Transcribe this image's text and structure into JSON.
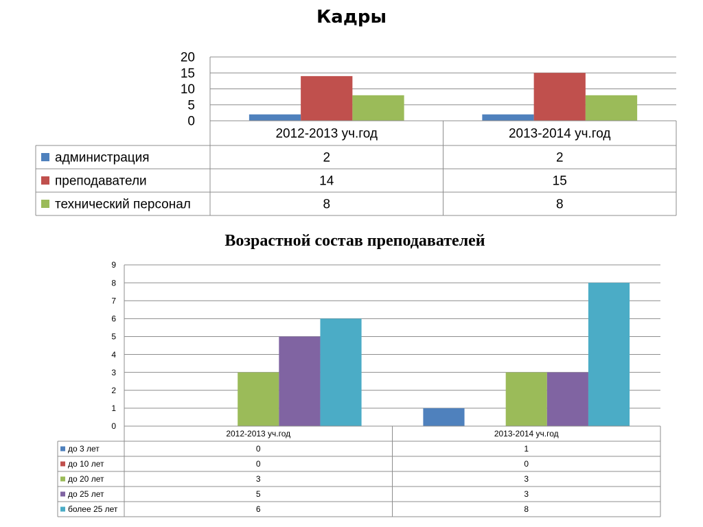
{
  "chart_data": [
    {
      "type": "bar",
      "title": "Кадры",
      "categories": [
        "2012-2013 уч.год",
        "2013-2014  уч.год"
      ],
      "series": [
        {
          "name": "администрация",
          "values": [
            2,
            2
          ],
          "color": "#4f81bd"
        },
        {
          "name": "преподаватели",
          "values": [
            14,
            15
          ],
          "color": "#c0504d"
        },
        {
          "name": "технический персонал",
          "values": [
            8,
            8
          ],
          "color": "#9bbb59"
        }
      ],
      "yticks": [
        0,
        5,
        10,
        15,
        20
      ],
      "ylim": [
        0,
        20
      ],
      "grid": true,
      "legend": "data-table"
    },
    {
      "type": "bar",
      "title": "Возрастной состав преподавателей",
      "categories": [
        "2012-2013 уч.год",
        "2013-2014 уч.год"
      ],
      "series": [
        {
          "name": "до 3 лет",
          "values": [
            0,
            1
          ],
          "color": "#4f81bd"
        },
        {
          "name": "до 10 лет",
          "values": [
            0,
            0
          ],
          "color": "#c0504d"
        },
        {
          "name": "до 20  лет",
          "values": [
            3,
            3
          ],
          "color": "#9bbb59"
        },
        {
          "name": "до 25 лет",
          "values": [
            5,
            3
          ],
          "color": "#8064a2"
        },
        {
          "name": "более 25 лет",
          "values": [
            6,
            8
          ],
          "color": "#4bacc6"
        }
      ],
      "yticks": [
        0,
        1,
        2,
        3,
        4,
        5,
        6,
        7,
        8,
        9
      ],
      "ylim": [
        0,
        9
      ],
      "grid": true,
      "legend": "data-table"
    }
  ]
}
